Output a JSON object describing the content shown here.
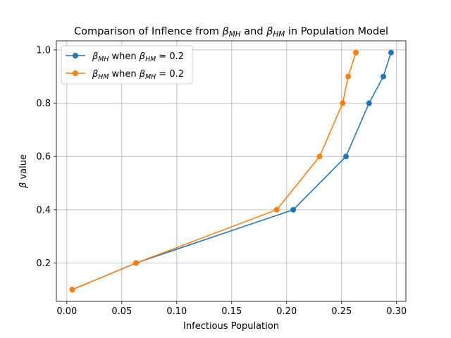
{
  "chart_data": {
    "type": "line",
    "title": "Comparison of Inflence from βMH and βHM in Population Model",
    "title_parts": [
      {
        "text": "Comparison of Inflence from ",
        "style": "normal"
      },
      {
        "text": "β",
        "style": "italic"
      },
      {
        "text": "MH",
        "style": "sub"
      },
      {
        "text": " and ",
        "style": "normal"
      },
      {
        "text": "β",
        "style": "italic"
      },
      {
        "text": "HM",
        "style": "sub"
      },
      {
        "text": " in Population Model",
        "style": "normal"
      }
    ],
    "xlabel": "Infectious Population",
    "ylabel": "β value",
    "ylabel_parts": [
      {
        "text": "β",
        "style": "italic"
      },
      {
        "text": " value",
        "style": "normal"
      }
    ],
    "xlim": [
      -0.0095,
      0.3085
    ],
    "ylim": [
      0.056,
      1.034
    ],
    "xticks": [
      0.0,
      0.05,
      0.1,
      0.15,
      0.2,
      0.25,
      0.3
    ],
    "xtick_labels": [
      "0.00",
      "0.05",
      "0.10",
      "0.15",
      "0.20",
      "0.25",
      "0.30"
    ],
    "yticks": [
      0.2,
      0.4,
      0.6,
      0.8,
      1.0
    ],
    "ytick_labels": [
      "0.2",
      "0.4",
      "0.6",
      "0.8",
      "1.0"
    ],
    "grid": true,
    "legend_position": "upper-left",
    "series": [
      {
        "name": "βMH when βHM = 0.2",
        "label_parts": [
          {
            "text": "β",
            "style": "italic"
          },
          {
            "text": "MH",
            "style": "sub"
          },
          {
            "text": " when ",
            "style": "normal"
          },
          {
            "text": "β",
            "style": "italic"
          },
          {
            "text": "HM",
            "style": "sub"
          },
          {
            "text": " = 0.2",
            "style": "normal"
          }
        ],
        "color": "#1f77b4",
        "x": [
          0.005,
          0.063,
          0.206,
          0.254,
          0.275,
          0.288,
          0.295
        ],
        "y": [
          0.1,
          0.2,
          0.4,
          0.6,
          0.8,
          0.9,
          0.99
        ]
      },
      {
        "name": "βHM when βMH = 0.2",
        "label_parts": [
          {
            "text": "β",
            "style": "italic"
          },
          {
            "text": "HM",
            "style": "sub"
          },
          {
            "text": " when ",
            "style": "normal"
          },
          {
            "text": "β",
            "style": "italic"
          },
          {
            "text": "MH",
            "style": "sub"
          },
          {
            "text": " = 0.2",
            "style": "normal"
          }
        ],
        "color": "#ff7f0e",
        "x": [
          0.005,
          0.063,
          0.191,
          0.23,
          0.251,
          0.256,
          0.263
        ],
        "y": [
          0.1,
          0.2,
          0.4,
          0.6,
          0.8,
          0.9,
          0.99
        ]
      }
    ]
  }
}
